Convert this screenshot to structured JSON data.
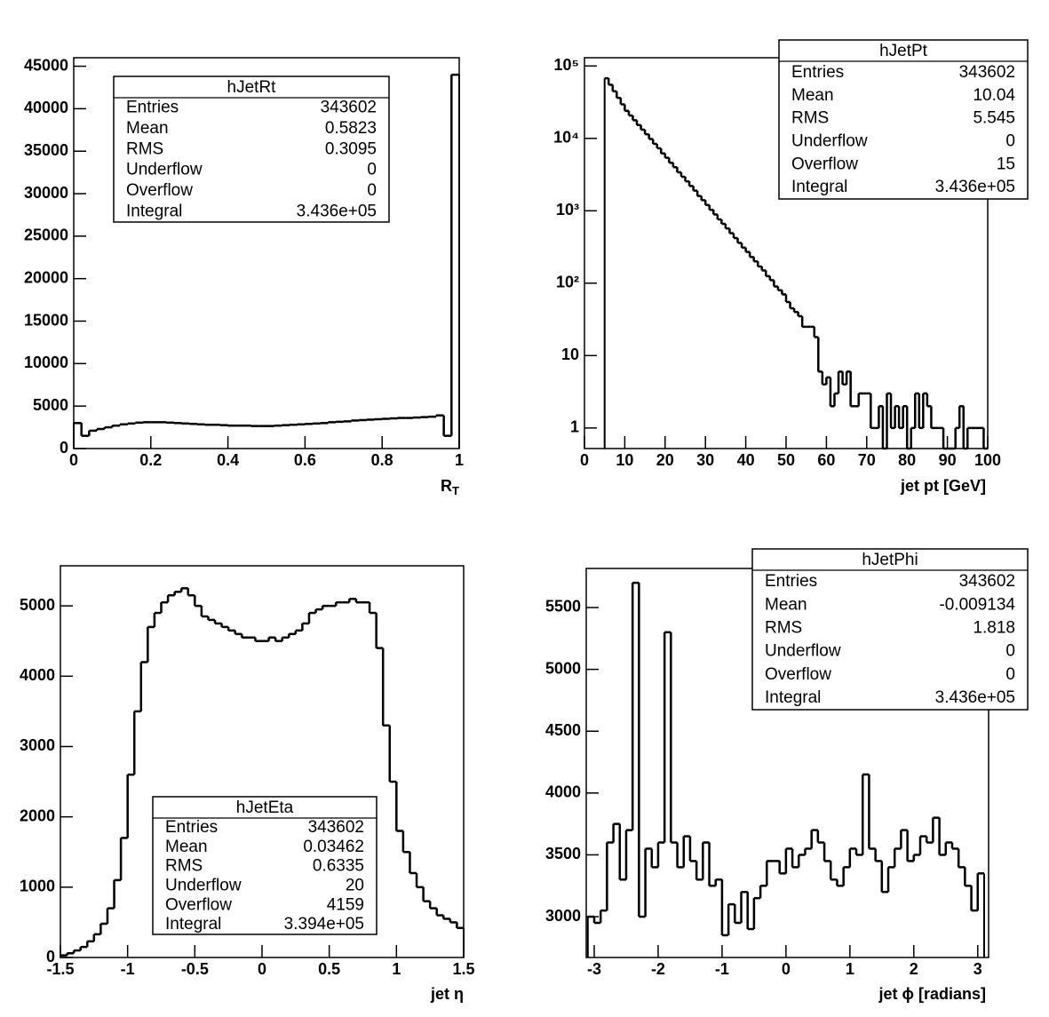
{
  "chart_data": [
    {
      "type": "histogram",
      "xlabel": "R",
      "xlabel_sub": "T",
      "xlim": [
        0,
        1
      ],
      "xticks": [
        0,
        0.2,
        0.4,
        0.6,
        0.8,
        1
      ],
      "ylim": [
        0,
        46000
      ],
      "yticks": [
        0,
        5000,
        10000,
        15000,
        20000,
        25000,
        30000,
        35000,
        40000,
        45000
      ],
      "log": false,
      "color": "#000000",
      "bins": [
        0,
        0.02,
        0.04,
        0.06,
        0.08,
        0.1,
        0.12,
        0.14,
        0.16,
        0.18,
        0.2,
        0.22,
        0.24,
        0.26,
        0.28,
        0.3,
        0.32,
        0.34,
        0.36,
        0.38,
        0.4,
        0.42,
        0.44,
        0.46,
        0.48,
        0.5,
        0.52,
        0.54,
        0.56,
        0.58,
        0.6,
        0.62,
        0.64,
        0.66,
        0.68,
        0.7,
        0.72,
        0.74,
        0.76,
        0.78,
        0.8,
        0.82,
        0.84,
        0.86,
        0.88,
        0.9,
        0.92,
        0.94,
        0.96,
        0.98,
        1
      ],
      "values": [
        3000,
        1500,
        2100,
        2300,
        2500,
        2700,
        2850,
        2950,
        3050,
        3100,
        3100,
        3100,
        3050,
        3000,
        2950,
        2900,
        2850,
        2800,
        2800,
        2750,
        2700,
        2700,
        2700,
        2650,
        2650,
        2650,
        2700,
        2750,
        2800,
        2850,
        2900,
        2950,
        3000,
        3100,
        3150,
        3200,
        3300,
        3350,
        3400,
        3450,
        3500,
        3550,
        3600,
        3600,
        3650,
        3700,
        3750,
        3900,
        1500,
        44000
      ],
      "stats": {
        "title": "hJetRt",
        "rows": [
          [
            "Entries",
            "343602"
          ],
          [
            "Mean",
            "0.5823"
          ],
          [
            "RMS",
            "0.3095"
          ],
          [
            "Underflow",
            "0"
          ],
          [
            "Overflow",
            "0"
          ],
          [
            "Integral",
            "3.436e+05"
          ]
        ]
      }
    },
    {
      "type": "histogram",
      "xlabel": "jet pt [GeV]",
      "xlim": [
        0,
        100
      ],
      "xticks": [
        0,
        10,
        20,
        30,
        40,
        50,
        60,
        70,
        80,
        90,
        100
      ],
      "ylim": [
        0.52,
        130000
      ],
      "yticks": [
        1,
        10,
        {
          "value": 100,
          "label": "10²"
        },
        {
          "value": 1000,
          "label": "10³"
        },
        {
          "value": 10000,
          "label": "10⁴"
        },
        {
          "value": 100000,
          "label": "10⁵"
        }
      ],
      "log": true,
      "color": "#000000",
      "bins": [
        5,
        6,
        7,
        8,
        9,
        10,
        11,
        12,
        13,
        14,
        15,
        16,
        17,
        18,
        19,
        20,
        21,
        22,
        23,
        24,
        25,
        26,
        27,
        28,
        29,
        30,
        31,
        32,
        33,
        34,
        35,
        36,
        37,
        38,
        39,
        40,
        41,
        42,
        43,
        44,
        45,
        46,
        47,
        48,
        49,
        50,
        51,
        52,
        53,
        54,
        55,
        56,
        57,
        58,
        59,
        60,
        61,
        62,
        63,
        64,
        65,
        66,
        67,
        68,
        69,
        70,
        71,
        72,
        73,
        74,
        75,
        76,
        77,
        78,
        79,
        80,
        81,
        82,
        83,
        84,
        85,
        86,
        87,
        88,
        89,
        90,
        91,
        92,
        93,
        94,
        95,
        96,
        97,
        98,
        99,
        100
      ],
      "values": [
        67600,
        55000,
        44700,
        36300,
        29500,
        24000,
        20700,
        17800,
        15300,
        13200,
        11400,
        9800,
        8400,
        7300,
        6200,
        5400,
        4600,
        4000,
        3400,
        2950,
        2550,
        2200,
        1900,
        1600,
        1400,
        1200,
        1030,
        890,
        760,
        660,
        570,
        490,
        420,
        360,
        310,
        270,
        230,
        200,
        170,
        150,
        125,
        110,
        90,
        80,
        70,
        55,
        45,
        40,
        35,
        25,
        25,
        25,
        18,
        6,
        4,
        5,
        2,
        3,
        6,
        4,
        6,
        2,
        2,
        3,
        3,
        3,
        1,
        1,
        2,
        0,
        3,
        1,
        2,
        1,
        2,
        0,
        1,
        3,
        1,
        3,
        2,
        1,
        1,
        1,
        0,
        0,
        0,
        1,
        2,
        0,
        1,
        1,
        1,
        1,
        0
      ],
      "stats": {
        "title": "hJetPt",
        "rows": [
          [
            "Entries",
            "343602"
          ],
          [
            "Mean",
            "10.04"
          ],
          [
            "RMS",
            "5.545"
          ],
          [
            "Underflow",
            "0"
          ],
          [
            "Overflow",
            "15"
          ],
          [
            "Integral",
            "3.436e+05"
          ]
        ]
      }
    },
    {
      "type": "histogram",
      "xlabel": "jet η",
      "xlim": [
        -1.5,
        1.5
      ],
      "xticks": [
        -1.5,
        -1,
        -0.5,
        0,
        0.5,
        1,
        1.5
      ],
      "ylim": [
        0,
        5570
      ],
      "yticks": [
        0,
        1000,
        2000,
        3000,
        4000,
        5000
      ],
      "log": false,
      "color": "#000000",
      "bins": [
        -1.5,
        -1.45,
        -1.4,
        -1.35,
        -1.3,
        -1.25,
        -1.2,
        -1.15,
        -1.1,
        -1.05,
        -1,
        -0.95,
        -0.9,
        -0.85,
        -0.8,
        -0.75,
        -0.7,
        -0.65,
        -0.6,
        -0.55,
        -0.5,
        -0.45,
        -0.4,
        -0.35,
        -0.3,
        -0.25,
        -0.2,
        -0.15,
        -0.1,
        -0.05,
        0,
        0.05,
        0.1,
        0.15,
        0.2,
        0.25,
        0.3,
        0.35,
        0.4,
        0.45,
        0.5,
        0.55,
        0.6,
        0.65,
        0.7,
        0.75,
        0.8,
        0.85,
        0.9,
        0.95,
        1,
        1.05,
        1.1,
        1.15,
        1.2,
        1.25,
        1.3,
        1.35,
        1.4,
        1.45,
        1.5
      ],
      "values": [
        30,
        60,
        100,
        150,
        230,
        330,
        480,
        700,
        1100,
        1700,
        2600,
        3500,
        4200,
        4700,
        4900,
        5050,
        5150,
        5200,
        5250,
        5150,
        5000,
        4850,
        4800,
        4750,
        4700,
        4650,
        4600,
        4550,
        4550,
        4500,
        4500,
        4550,
        4500,
        4550,
        4600,
        4650,
        4750,
        4900,
        4950,
        5000,
        5000,
        5050,
        5050,
        5100,
        5050,
        5050,
        4900,
        4400,
        3300,
        2500,
        1800,
        1500,
        1200,
        1000,
        800,
        700,
        600,
        550,
        500,
        420
      ],
      "stats": {
        "title": "hJetEta",
        "rows": [
          [
            "Entries",
            "343602"
          ],
          [
            "Mean",
            "0.03462"
          ],
          [
            "RMS",
            "0.6335"
          ],
          [
            "Underflow",
            "20"
          ],
          [
            "Overflow",
            "4159"
          ],
          [
            "Integral",
            "3.394e+05"
          ]
        ]
      }
    },
    {
      "type": "histogram",
      "xlabel": "jet ϕ [radians]",
      "xlim": [
        -3.125,
        3.17
      ],
      "xticks": [
        -3,
        -2,
        -1,
        0,
        1,
        2,
        3
      ],
      "ylim": [
        2670,
        5816
      ],
      "yticks": [
        3000,
        3500,
        4000,
        4500,
        5000,
        5500
      ],
      "log": false,
      "color": "#000000",
      "bins": [
        -3.1,
        -3,
        -2.9,
        -2.8,
        -2.7,
        -2.6,
        -2.5,
        -2.4,
        -2.3,
        -2.2,
        -2.1,
        -2,
        -1.9,
        -1.8,
        -1.7,
        -1.6,
        -1.5,
        -1.4,
        -1.3,
        -1.2,
        -1.1,
        -1,
        -0.9,
        -0.8,
        -0.7,
        -0.6,
        -0.5,
        -0.4,
        -0.3,
        -0.2,
        -0.1,
        0,
        0.1,
        0.2,
        0.3,
        0.4,
        0.5,
        0.6,
        0.7,
        0.8,
        0.9,
        1,
        1.1,
        1.2,
        1.3,
        1.4,
        1.5,
        1.6,
        1.7,
        1.8,
        1.9,
        2,
        2.1,
        2.2,
        2.3,
        2.4,
        2.5,
        2.6,
        2.7,
        2.8,
        2.9,
        3,
        3.1
      ],
      "values": [
        3000,
        2950,
        3050,
        3600,
        3750,
        3300,
        3700,
        5700,
        3000,
        3550,
        3400,
        3600,
        5300,
        3600,
        3400,
        3650,
        3450,
        3300,
        3600,
        3250,
        3300,
        2850,
        3100,
        2950,
        3200,
        2900,
        3150,
        3250,
        3450,
        3450,
        3350,
        3550,
        3400,
        3500,
        3550,
        3700,
        3600,
        3450,
        3300,
        3250,
        3400,
        3550,
        3500,
        4150,
        3550,
        3450,
        3200,
        3400,
        3550,
        3700,
        3450,
        3500,
        3650,
        3600,
        3800,
        3500,
        3600,
        3550,
        3400,
        3250,
        3050,
        3350
      ],
      "stats": {
        "title": "hJetPhi",
        "rows": [
          [
            "Entries",
            "343602"
          ],
          [
            "Mean",
            "-0.009134"
          ],
          [
            "RMS",
            "1.818"
          ],
          [
            "Underflow",
            "0"
          ],
          [
            "Overflow",
            "0"
          ],
          [
            "Integral",
            "3.436e+05"
          ]
        ]
      }
    }
  ]
}
